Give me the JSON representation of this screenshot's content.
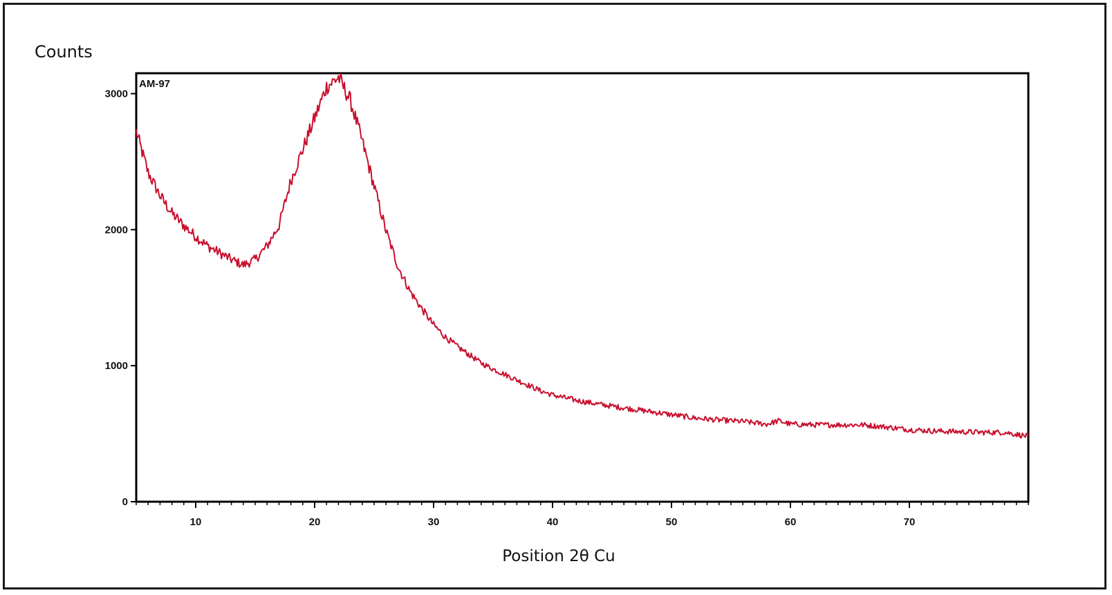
{
  "chart_data": {
    "type": "line",
    "ylabel": "Counts",
    "xlabel": "Position 2θ Cu",
    "xlim": [
      5,
      80
    ],
    "ylim": [
      0,
      3150
    ],
    "x_ticks": [
      10,
      20,
      30,
      40,
      50,
      60,
      70
    ],
    "y_ticks": [
      0,
      1000,
      2000,
      3000
    ],
    "x_minor_step": 1,
    "grid": false,
    "line_color": "#c8102e",
    "series": [
      {
        "name": "AM-97",
        "x": [
          5,
          6,
          7,
          8,
          9,
          10,
          11,
          12,
          13,
          14,
          15,
          16,
          17,
          18,
          19,
          20,
          21,
          22,
          23,
          24,
          25,
          26,
          27,
          28,
          29,
          30,
          31,
          32,
          33,
          34,
          35,
          36,
          37,
          38,
          39,
          40,
          42,
          44,
          46,
          48,
          50,
          52,
          54,
          56,
          58,
          59,
          60,
          62,
          64,
          66,
          68,
          70,
          72,
          74,
          76,
          78,
          80
        ],
        "y": [
          2720,
          2420,
          2250,
          2120,
          2030,
          1950,
          1880,
          1830,
          1780,
          1740,
          1780,
          1880,
          2030,
          2360,
          2590,
          2820,
          3050,
          3120,
          2950,
          2650,
          2320,
          1990,
          1730,
          1550,
          1420,
          1300,
          1210,
          1140,
          1080,
          1020,
          975,
          935,
          895,
          855,
          815,
          785,
          745,
          715,
          690,
          665,
          640,
          615,
          600,
          590,
          570,
          595,
          570,
          565,
          565,
          565,
          550,
          530,
          520,
          515,
          510,
          510,
          480
        ]
      }
    ]
  }
}
